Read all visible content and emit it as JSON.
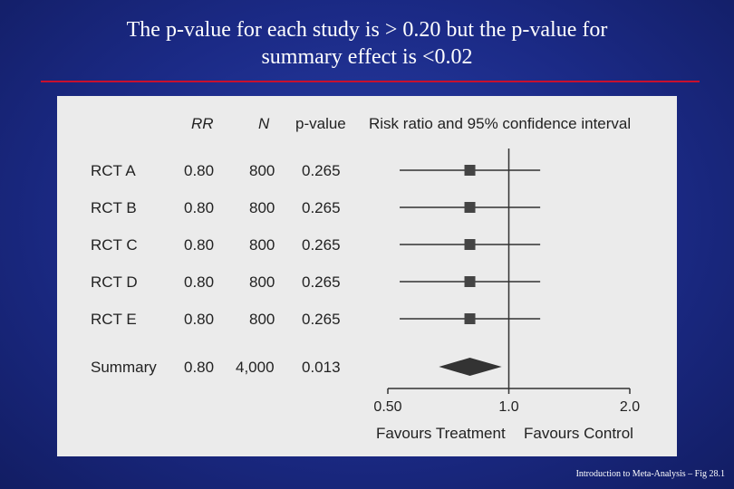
{
  "slide": {
    "title_line1": "The p-value for each study is > 0.20 but the p-value for",
    "title_line2": "summary effect is <0.02",
    "footer": "Introduction to Meta-Analysis – Fig 28.1",
    "rule_color": "#c8102e",
    "background_color": "#1b2a86"
  },
  "chart_data": {
    "type": "forest",
    "columns": {
      "rr": "RR",
      "n": "N",
      "p": "p-value",
      "plot": "Risk ratio and 95% confidence interval"
    },
    "studies": [
      {
        "label": "RCT A",
        "rr_text": "0.80",
        "n_text": "800",
        "p_text": "0.265",
        "rr": 0.8,
        "lower": 0.535,
        "upper": 1.197
      },
      {
        "label": "RCT B",
        "rr_text": "0.80",
        "n_text": "800",
        "p_text": "0.265",
        "rr": 0.8,
        "lower": 0.535,
        "upper": 1.197
      },
      {
        "label": "RCT C",
        "rr_text": "0.80",
        "n_text": "800",
        "p_text": "0.265",
        "rr": 0.8,
        "lower": 0.535,
        "upper": 1.197
      },
      {
        "label": "RCT D",
        "rr_text": "0.80",
        "n_text": "800",
        "p_text": "0.265",
        "rr": 0.8,
        "lower": 0.535,
        "upper": 1.197
      },
      {
        "label": "RCT E",
        "rr_text": "0.80",
        "n_text": "800",
        "p_text": "0.265",
        "rr": 0.8,
        "lower": 0.535,
        "upper": 1.197
      }
    ],
    "summary": {
      "label": "Summary",
      "rr_text": "0.80",
      "n_text": "4,000",
      "p_text": "0.013",
      "rr": 0.8,
      "lower": 0.67,
      "upper": 0.96
    },
    "x_axis": {
      "scale": "log",
      "ticks": [
        0.5,
        1.0,
        2.0
      ],
      "tick_labels": [
        "0.50",
        "1.0",
        "2.0"
      ],
      "range": [
        0.5,
        2.0
      ],
      "left_label": "Favours Treatment",
      "right_label": "Favours Control"
    }
  }
}
